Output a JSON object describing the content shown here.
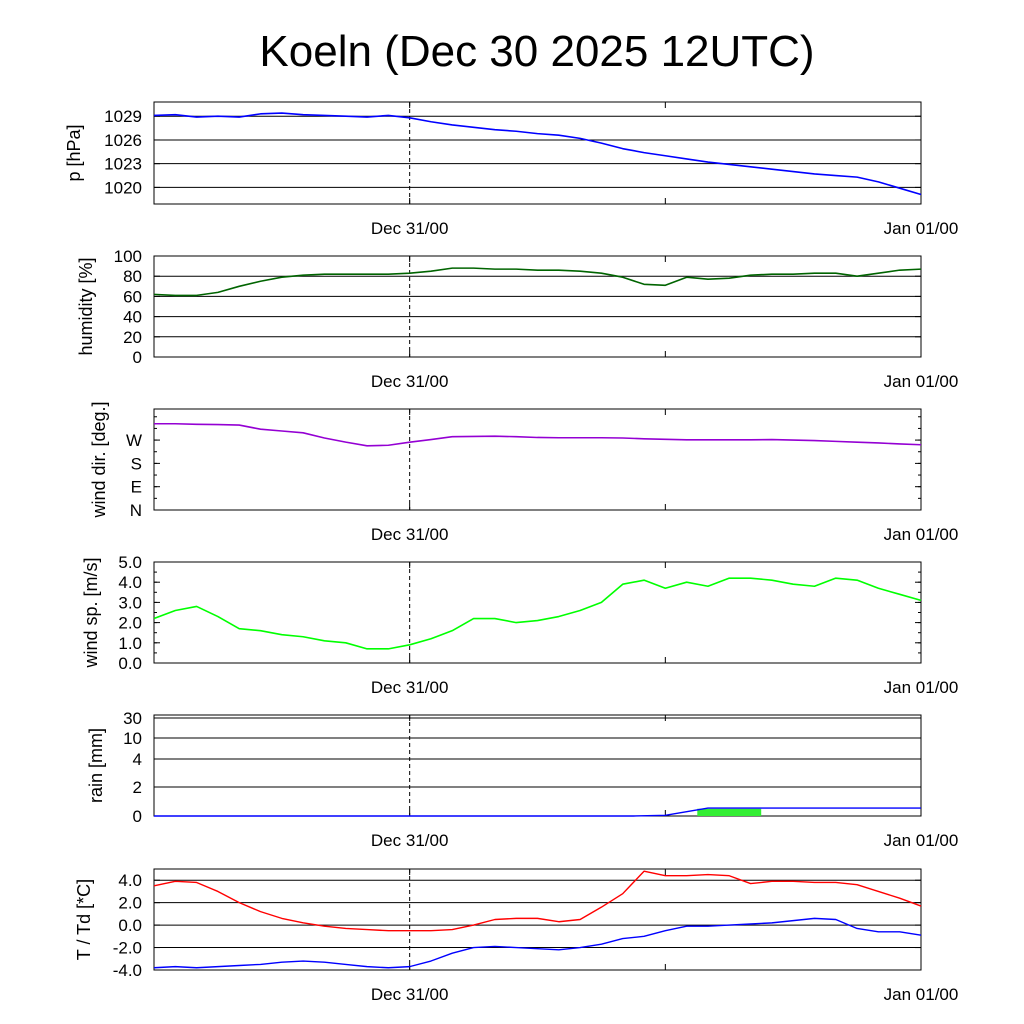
{
  "title": "Koeln (Dec 30 2025 12UTC)",
  "x_tick_labels": [
    "Dec 31/00",
    "Jan 01/00"
  ],
  "colors": {
    "pressure": "#0000ff",
    "humidity": "#006400",
    "wind_dir": "#9400d3",
    "wind_speed": "#00ff00",
    "rain_accum": "#0000ff",
    "rain_bar": "#33ee33",
    "temperature": "#ff0000",
    "dewpoint": "#0000ff"
  },
  "chart_data": [
    {
      "type": "line",
      "id": "pressure",
      "ylabel": "p [hPa]",
      "ylim": [
        1017.9,
        1030.8
      ],
      "yticks": [
        1020,
        1023,
        1026,
        1029
      ],
      "ytick_labels": [
        "1020",
        "1023",
        "1026",
        "1029"
      ],
      "grid": true,
      "x_hours": [
        0,
        1,
        2,
        3,
        4,
        5,
        6,
        7,
        8,
        9,
        10,
        11,
        12,
        13,
        14,
        15,
        16,
        17,
        18,
        19,
        20,
        21,
        22,
        23,
        24,
        25,
        26,
        27,
        28,
        29,
        30,
        31,
        32,
        33,
        34,
        35,
        36
      ],
      "values": [
        1029.1,
        1029.2,
        1028.9,
        1029.0,
        1028.9,
        1029.3,
        1029.4,
        1029.2,
        1029.1,
        1029.0,
        1028.9,
        1029.1,
        1028.8,
        1028.3,
        1027.9,
        1027.6,
        1027.3,
        1027.1,
        1026.8,
        1026.6,
        1026.2,
        1025.6,
        1024.9,
        1024.4,
        1024.0,
        1023.6,
        1023.2,
        1022.9,
        1022.6,
        1022.3,
        1022.0,
        1021.7,
        1021.5,
        1021.3,
        1020.7,
        1019.9,
        1019.1
      ]
    },
    {
      "type": "line",
      "id": "humidity",
      "ylabel": "humidity [%]",
      "ylim": [
        0,
        100
      ],
      "yticks": [
        0,
        20,
        40,
        60,
        80,
        100
      ],
      "ytick_labels": [
        "0",
        "20",
        "40",
        "60",
        "80",
        "100"
      ],
      "grid": true,
      "x_hours": [
        0,
        1,
        2,
        3,
        4,
        5,
        6,
        7,
        8,
        9,
        10,
        11,
        12,
        13,
        14,
        15,
        16,
        17,
        18,
        19,
        20,
        21,
        22,
        23,
        24,
        25,
        26,
        27,
        28,
        29,
        30,
        31,
        32,
        33,
        34,
        35,
        36
      ],
      "values": [
        62,
        61,
        61,
        64,
        70,
        75,
        79,
        81,
        82,
        82,
        82,
        82,
        83,
        85,
        88,
        88,
        87,
        87,
        86,
        86,
        85,
        83,
        79,
        72,
        71,
        79,
        77,
        78,
        81,
        82,
        82,
        83,
        83,
        80,
        83,
        86,
        87
      ]
    },
    {
      "type": "line",
      "id": "wind_direction",
      "ylabel": "wind dir. [deg.]",
      "ylim": [
        0,
        390
      ],
      "yticks": [
        0,
        90,
        180,
        270
      ],
      "ytick_labels": [
        "N",
        "E",
        "S",
        "W"
      ],
      "grid": false,
      "x_hours": [
        0,
        1,
        2,
        3,
        4,
        5,
        6,
        7,
        8,
        9,
        10,
        11,
        12,
        13,
        14,
        15,
        16,
        17,
        18,
        19,
        20,
        21,
        22,
        23,
        24,
        25,
        26,
        27,
        28,
        29,
        30,
        31,
        32,
        33,
        34,
        35,
        36
      ],
      "values": [
        333,
        333,
        331,
        330,
        328,
        312,
        305,
        298,
        278,
        262,
        248,
        250,
        262,
        272,
        283,
        284,
        285,
        283,
        280,
        279,
        279,
        279,
        278,
        275,
        273,
        271,
        271,
        271,
        271,
        272,
        270,
        268,
        265,
        262,
        259,
        255,
        252
      ]
    },
    {
      "type": "line",
      "id": "wind_speed",
      "ylabel": "wind sp. [m/s]",
      "ylim": [
        0,
        5
      ],
      "yticks": [
        0,
        1,
        2,
        3,
        4,
        5
      ],
      "ytick_labels": [
        "0.0",
        "1.0",
        "2.0",
        "3.0",
        "4.0",
        "5.0"
      ],
      "grid": false,
      "x_hours": [
        0,
        1,
        2,
        3,
        4,
        5,
        6,
        7,
        8,
        9,
        10,
        11,
        12,
        13,
        14,
        15,
        16,
        17,
        18,
        19,
        20,
        21,
        22,
        23,
        24,
        25,
        26,
        27,
        28,
        29,
        30,
        31,
        32,
        33,
        34,
        35,
        36
      ],
      "values": [
        2.2,
        2.6,
        2.8,
        2.3,
        1.7,
        1.6,
        1.4,
        1.3,
        1.1,
        1.0,
        0.7,
        0.7,
        0.9,
        1.2,
        1.6,
        2.2,
        2.2,
        2.0,
        2.1,
        2.3,
        2.6,
        3.0,
        3.9,
        4.1,
        3.7,
        4.0,
        3.8,
        4.2,
        4.2,
        4.1,
        3.9,
        3.8,
        4.2,
        4.1,
        3.7,
        3.4,
        3.1
      ]
    },
    {
      "type": "area",
      "id": "rain",
      "ylabel": "rain [mm]",
      "yticks": [
        0,
        2,
        4,
        10,
        30
      ],
      "ytick_labels": [
        "0",
        "2",
        "4",
        "10",
        "30"
      ],
      "grid": true,
      "x_hours": [
        0,
        22.5,
        24,
        25,
        26,
        27,
        36
      ],
      "accumulated_mm": [
        0,
        0,
        0.05,
        0.3,
        0.55,
        0.55,
        0.55
      ],
      "bars": [
        {
          "start_hour": 25.5,
          "end_hour": 28.5,
          "value_mm": 0.5
        }
      ]
    },
    {
      "type": "line",
      "id": "temperature",
      "ylabel": "T / Td [*C]",
      "ylim": [
        -4,
        5
      ],
      "yticks": [
        -4,
        -2,
        0,
        2,
        4
      ],
      "ytick_labels": [
        "-4.0",
        "-2.0",
        "0.0",
        "2.0",
        "4.0"
      ],
      "grid": true,
      "x_hours": [
        0,
        1,
        2,
        3,
        4,
        5,
        6,
        7,
        8,
        9,
        10,
        11,
        12,
        13,
        14,
        15,
        16,
        17,
        18,
        19,
        20,
        21,
        22,
        23,
        24,
        25,
        26,
        27,
        28,
        29,
        30,
        31,
        32,
        33,
        34,
        35,
        36
      ],
      "series": [
        {
          "name": "T",
          "values": [
            3.5,
            3.9,
            3.8,
            3.0,
            2.0,
            1.2,
            0.6,
            0.2,
            -0.1,
            -0.3,
            -0.4,
            -0.5,
            -0.5,
            -0.5,
            -0.4,
            0.0,
            0.5,
            0.6,
            0.6,
            0.3,
            0.5,
            1.6,
            2.8,
            4.8,
            4.4,
            4.4,
            4.5,
            4.4,
            3.7,
            3.9,
            3.9,
            3.8,
            3.8,
            3.6,
            3.0,
            2.4,
            1.7
          ]
        },
        {
          "name": "Td",
          "values": [
            -3.8,
            -3.7,
            -3.8,
            -3.7,
            -3.6,
            -3.5,
            -3.3,
            -3.2,
            -3.3,
            -3.5,
            -3.7,
            -3.8,
            -3.7,
            -3.2,
            -2.5,
            -2.0,
            -1.9,
            -2.0,
            -2.1,
            -2.2,
            -2.0,
            -1.7,
            -1.2,
            -1.0,
            -0.5,
            -0.1,
            -0.1,
            0.0,
            0.1,
            0.2,
            0.4,
            0.6,
            0.5,
            -0.3,
            -0.6,
            -0.6,
            -0.9
          ]
        }
      ]
    }
  ]
}
